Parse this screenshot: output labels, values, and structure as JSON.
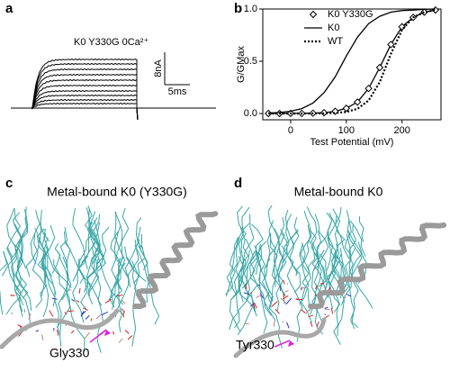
{
  "panels": {
    "a": {
      "letter": "a",
      "trace_label": "K0 Y330G 0Ca²⁺",
      "scale_current": "8nA",
      "scale_time": "5ms"
    },
    "b": {
      "letter": "b"
    },
    "c": {
      "letter": "c",
      "title": "Metal-bound K0 (Y330G)",
      "residue": "Gly330"
    },
    "d": {
      "letter": "d",
      "title": "Metal-bound K0",
      "residue": "Tyr330"
    }
  },
  "chart_data": {
    "type": "line",
    "xlabel": "Test Potential (mV)",
    "ylabel": "G/GMax",
    "x": [
      -40,
      -20,
      0,
      20,
      40,
      60,
      80,
      100,
      120,
      140,
      160,
      180,
      200,
      220,
      240,
      260
    ],
    "series": [
      {
        "name": "K0 Y330G",
        "color": "#000000",
        "dash": "solid",
        "marker": "diamond",
        "values": [
          0.0,
          0.0,
          0.001,
          0.001,
          0.003,
          0.008,
          0.021,
          0.05,
          0.11,
          0.24,
          0.44,
          0.66,
          0.83,
          0.92,
          0.97,
          0.99
        ]
      },
      {
        "name": "K0",
        "color": "#000000",
        "dash": "solid",
        "values": [
          0.0045,
          0.01,
          0.022,
          0.047,
          0.1,
          0.2,
          0.35,
          0.55,
          0.73,
          0.86,
          0.93,
          0.97,
          0.985,
          0.99,
          0.997,
          1.0
        ]
      },
      {
        "name": "WT",
        "color": "#000000",
        "dash": "dotted",
        "values": [
          0.0,
          0.0,
          0.0,
          0.0,
          0.001,
          0.002,
          0.005,
          0.015,
          0.045,
          0.125,
          0.3,
          0.57,
          0.8,
          0.92,
          0.97,
          0.99
        ]
      }
    ],
    "xlim": [
      -50,
      270
    ],
    "xticks": [
      0,
      100,
      200
    ],
    "ylim": [
      -0.06,
      1.0
    ],
    "yticks": [
      {
        "value": 0,
        "label": "0.0"
      },
      {
        "value": 0.5,
        "label": "0.5"
      },
      {
        "value": 1,
        "label": "1.0"
      }
    ]
  }
}
